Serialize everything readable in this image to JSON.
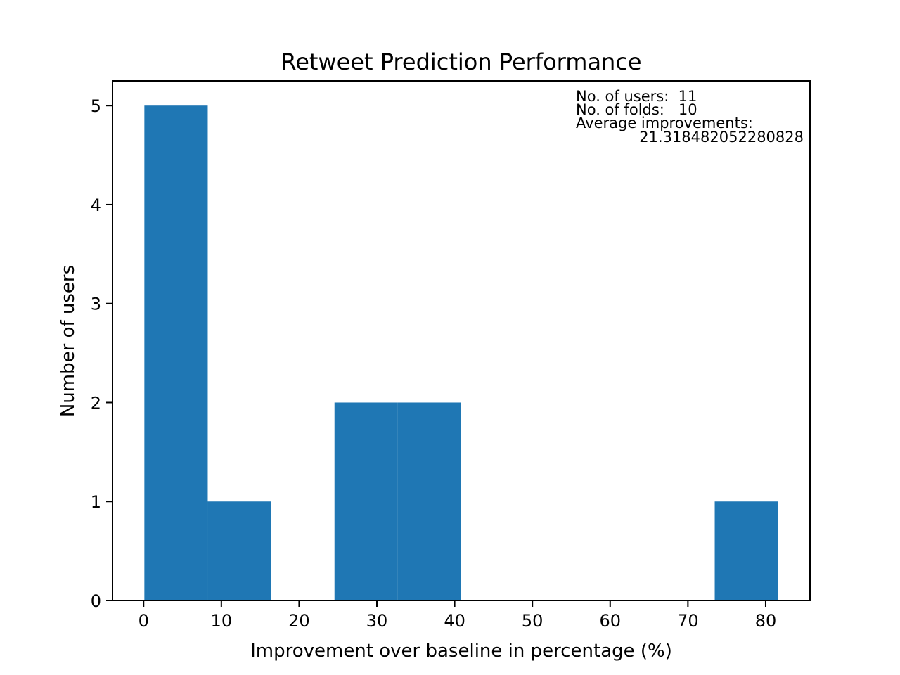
{
  "chart_data": {
    "type": "bar",
    "title": "Retweet Prediction Performance",
    "xlabel": "Improvement over baseline in percentage (%)",
    "ylabel": "Number of users",
    "xlim": [
      -4.0,
      85.7
    ],
    "ylim": [
      0,
      5.25
    ],
    "xticks": [
      0,
      10,
      20,
      30,
      40,
      50,
      60,
      70,
      80
    ],
    "yticks": [
      0,
      1,
      2,
      3,
      4,
      5
    ],
    "bar_color": "#1f77b4",
    "bins": [
      {
        "x0": 0.1,
        "x1": 8.25,
        "count": 5
      },
      {
        "x0": 8.25,
        "x1": 16.4,
        "count": 1
      },
      {
        "x0": 16.4,
        "x1": 24.55,
        "count": 0
      },
      {
        "x0": 24.55,
        "x1": 32.7,
        "count": 2
      },
      {
        "x0": 32.7,
        "x1": 40.85,
        "count": 2
      },
      {
        "x0": 40.85,
        "x1": 49.0,
        "count": 0
      },
      {
        "x0": 49.0,
        "x1": 57.15,
        "count": 0
      },
      {
        "x0": 57.15,
        "x1": 65.3,
        "count": 0
      },
      {
        "x0": 65.3,
        "x1": 73.45,
        "count": 0
      },
      {
        "x0": 73.45,
        "x1": 81.6,
        "count": 1
      }
    ],
    "annotation": {
      "line1": "No. of users:  11",
      "line2": "No. of folds:   10",
      "line3": "Average improvements:",
      "line4": "21.318482052280828"
    },
    "grid": false,
    "legend": "none"
  }
}
